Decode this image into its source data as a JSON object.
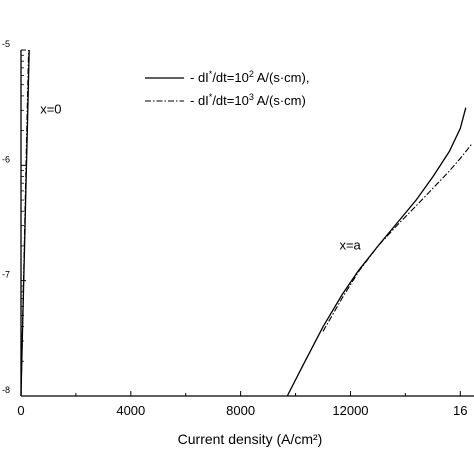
{
  "chart_data": {
    "type": "line",
    "xlabel": "Current density (A/cm²)",
    "xlim": [
      0,
      16500
    ],
    "ylim": [
      -8,
      -5
    ],
    "y_scale": "log",
    "x_tick_labels": [
      "0",
      "4000",
      "8000",
      "12000",
      "16"
    ],
    "y_tick_labels": [
      "-8",
      "-7",
      "-6",
      "-5"
    ],
    "legend": {
      "placement": "top-right",
      "entries": [
        {
          "label": "- dI*/dt=10² A/(s·cm),",
          "style": "solid"
        },
        {
          "label": "- dI*/dt=10³ A/(s·cm)",
          "style": "dash-dot"
        }
      ]
    },
    "annotations": [
      {
        "text": "x=0",
        "x": 700,
        "y": -5.55
      },
      {
        "text": "x=a",
        "x": 11600,
        "y": -6.73
      }
    ],
    "series": [
      {
        "style": "solid",
        "group": "x=0",
        "x": [
          0,
          60,
          120,
          180,
          240,
          300
        ],
        "y": [
          -8,
          -7.4,
          -6.8,
          -6.2,
          -5.6,
          -5.0
        ]
      },
      {
        "style": "dash-dot",
        "group": "x=0",
        "x": [
          0,
          55,
          110,
          165,
          220,
          275
        ],
        "y": [
          -8,
          -7.4,
          -6.8,
          -6.2,
          -5.6,
          -5.0
        ]
      },
      {
        "style": "solid",
        "group": "x=a",
        "x": [
          9700,
          10300,
          11000,
          11700,
          12300,
          13000,
          13700,
          14400,
          15000,
          15600,
          16000,
          16200
        ],
        "y": [
          -8.0,
          -7.72,
          -7.4,
          -7.12,
          -6.91,
          -6.7,
          -6.5,
          -6.3,
          -6.1,
          -5.88,
          -5.68,
          -5.5
        ]
      },
      {
        "style": "dash-dot",
        "group": "x=a",
        "x": [
          11000,
          11700,
          12300,
          13000,
          13700,
          14400,
          15000,
          15600,
          16000,
          16400
        ],
        "y": [
          -7.44,
          -7.15,
          -6.92,
          -6.7,
          -6.52,
          -6.35,
          -6.2,
          -6.05,
          -5.94,
          -5.82
        ]
      }
    ]
  }
}
